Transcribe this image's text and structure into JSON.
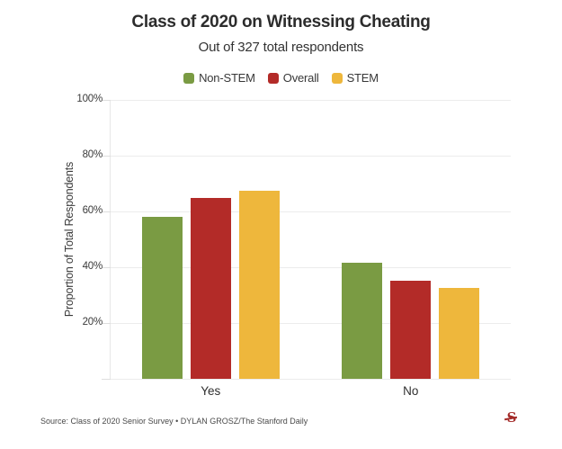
{
  "header": {
    "title": "Class of 2020 on Witnessing Cheating",
    "subtitle": "Out of 327 total respondents"
  },
  "legend": [
    {
      "label": "Non-STEM",
      "color": "#7a9b43"
    },
    {
      "label": "Overall",
      "color": "#b32b28"
    },
    {
      "label": "STEM",
      "color": "#eeb73c"
    }
  ],
  "chart_data": {
    "type": "bar",
    "categories": [
      "Yes",
      "No"
    ],
    "series": [
      {
        "name": "Non-STEM",
        "color": "#7a9b43",
        "values": [
          58.2,
          41.6
        ]
      },
      {
        "name": "Overall",
        "color": "#b32b28",
        "values": [
          64.8,
          35.2
        ]
      },
      {
        "name": "STEM",
        "color": "#eeb73c",
        "values": [
          67.4,
          32.5
        ]
      }
    ],
    "title": "Class of 2020 on Witnessing Cheating",
    "subtitle": "Out of 327 total respondents",
    "xlabel": "",
    "ylabel": "Proportion of Total Respondents",
    "ylim": [
      0,
      100
    ],
    "ytick_step": 20,
    "yticks": [
      "100%",
      "80%",
      "60%",
      "40%",
      "20%"
    ],
    "grid": true,
    "legend_position": "top"
  },
  "footer": {
    "source": "Source: Class of 2020 Senior Survey • DYLAN GROSZ/The Stanford Daily",
    "logo_letter": "S"
  }
}
